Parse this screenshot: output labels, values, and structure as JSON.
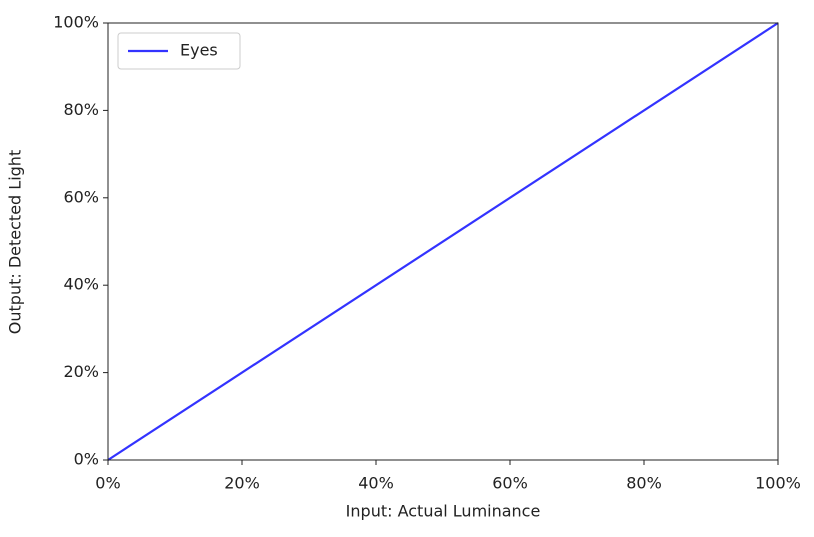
{
  "chart_data": {
    "type": "line",
    "xlabel": "Input: Actual Luminance",
    "ylabel": "Output: Detected Light",
    "x": [
      0,
      100
    ],
    "series": [
      {
        "name": "Eyes",
        "color": "#3333ff",
        "values": [
          0,
          100
        ]
      }
    ],
    "xlim": [
      0,
      100
    ],
    "ylim": [
      0,
      100
    ],
    "xticks": [
      {
        "value": 0,
        "label": "0%"
      },
      {
        "value": 20,
        "label": "20%"
      },
      {
        "value": 40,
        "label": "40%"
      },
      {
        "value": 60,
        "label": "60%"
      },
      {
        "value": 80,
        "label": "80%"
      },
      {
        "value": 100,
        "label": "100%"
      }
    ],
    "yticks": [
      {
        "value": 0,
        "label": "0%"
      },
      {
        "value": 20,
        "label": "20%"
      },
      {
        "value": 40,
        "label": "40%"
      },
      {
        "value": 60,
        "label": "60%"
      },
      {
        "value": 80,
        "label": "80%"
      },
      {
        "value": 100,
        "label": "100%"
      }
    ],
    "grid": false,
    "legend": "upper left"
  }
}
